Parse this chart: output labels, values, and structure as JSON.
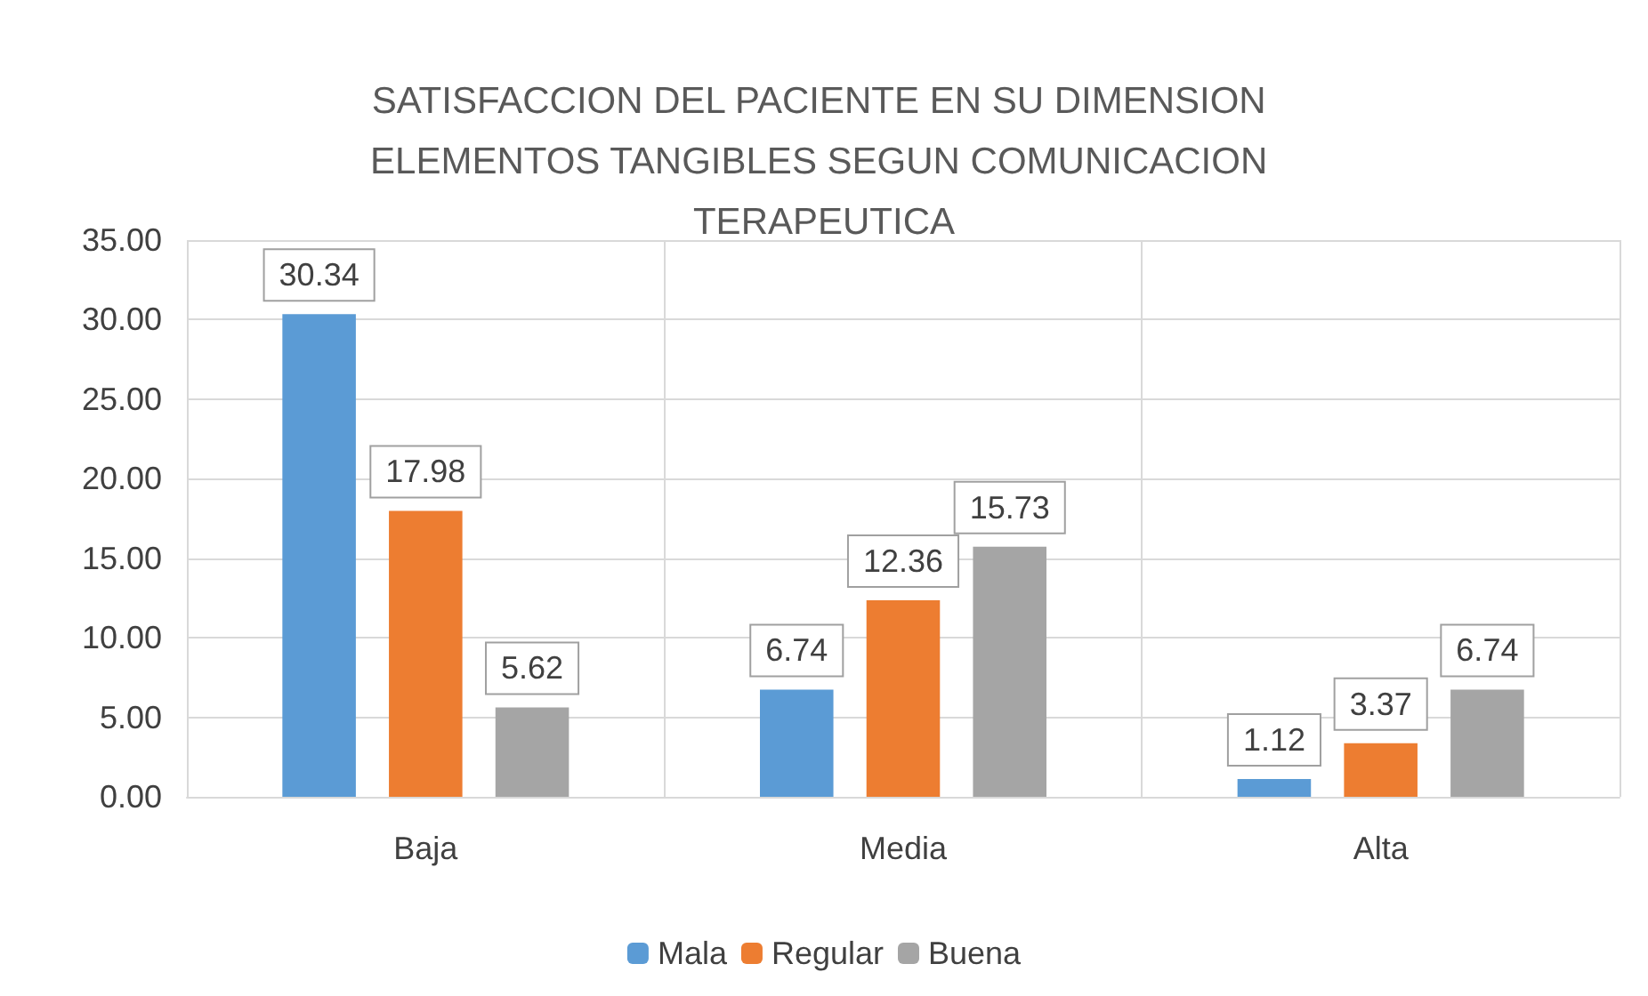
{
  "chart_data": {
    "type": "bar",
    "title": "SATISFACCION DEL PACIENTE EN SU DIMENSION ELEMENTOS TANGIBLES SEGUN COMUNICACION TERAPEUTICA",
    "categories": [
      "Baja",
      "Media",
      "Alta"
    ],
    "series": [
      {
        "name": "Mala",
        "color": "#5b9bd5",
        "values": [
          30.34,
          6.74,
          1.12
        ]
      },
      {
        "name": "Regular",
        "color": "#ed7d31",
        "values": [
          17.98,
          12.36,
          3.37
        ]
      },
      {
        "name": "Buena",
        "color": "#a5a5a5",
        "values": [
          5.62,
          15.73,
          6.74
        ]
      }
    ],
    "ylim": [
      0,
      35
    ],
    "yticks": [
      {
        "value": 0,
        "label": "0.00"
      },
      {
        "value": 5,
        "label": "5.00"
      },
      {
        "value": 10,
        "label": "10.00"
      },
      {
        "value": 15,
        "label": "15.00"
      },
      {
        "value": 20,
        "label": "20.00"
      },
      {
        "value": 25,
        "label": "25.00"
      },
      {
        "value": 30,
        "label": "30.00"
      },
      {
        "value": 35,
        "label": "35.00"
      }
    ],
    "grid": true,
    "legend": "bottom",
    "data_labels": true
  }
}
